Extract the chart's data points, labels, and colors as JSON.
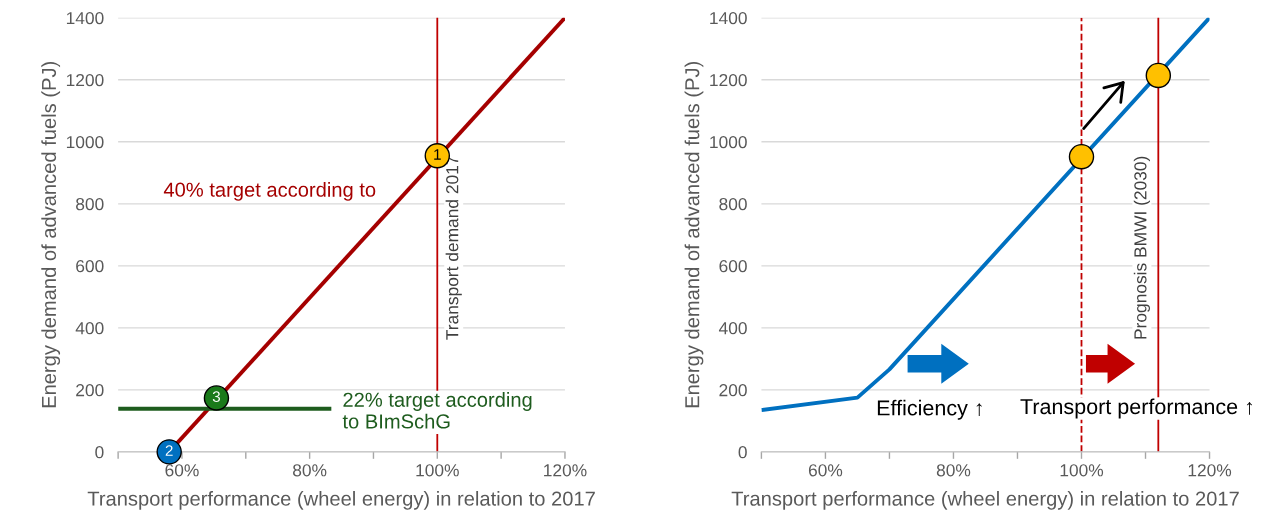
{
  "chart_data": [
    {
      "type": "line",
      "xlabel": "Transport performance (wheel energy) in relation to 2017",
      "ylabel": "Energy demand of advanced fuels (PJ)",
      "xlim": [
        50,
        120
      ],
      "xticks": [
        {
          "value": 50,
          "label": null
        },
        {
          "value": 60,
          "label": "60%"
        },
        {
          "value": 70,
          "label": null
        },
        {
          "value": 80,
          "label": "80%"
        },
        {
          "value": 90,
          "label": null
        },
        {
          "value": 100,
          "label": "100%"
        },
        {
          "value": 110,
          "label": null
        },
        {
          "value": 120,
          "label": "120%"
        }
      ],
      "ylim": [
        0,
        1400
      ],
      "yticks": [
        0,
        200,
        400,
        600,
        800,
        1000,
        1200,
        1400
      ],
      "grid": "y",
      "legend": false,
      "series": [
        {
          "type": "line",
          "name": "40% target according to",
          "color": "#a50000",
          "x": [
            58,
            120
          ],
          "values": [
            0,
            1400
          ],
          "marker": "none"
        },
        {
          "type": "line",
          "name": "22% target according\nto BImSchG",
          "color": "#1e5c1e",
          "x": [
            50,
            83.4
          ],
          "values": [
            139,
            139
          ],
          "marker": "none"
        },
        {
          "type": "scatter",
          "x": [
            100,
            58,
            65.4
          ],
          "values": [
            955,
            0,
            174
          ],
          "colors": [
            "#ffc000",
            "#0070c0",
            "#1a7a1a"
          ],
          "marker": "circle"
        }
      ],
      "ref_lines": [
        {
          "axis": "x",
          "value": 100,
          "label": "Transport demand 2017",
          "color": "#c00000",
          "line_style": "solid"
        }
      ],
      "annotations": [
        {
          "text": "1",
          "x": 100,
          "y": 955
        },
        {
          "text": "2",
          "x": 58,
          "y": 0
        },
        {
          "text": "3",
          "x": 65.4,
          "y": 174
        }
      ]
    },
    {
      "type": "line",
      "xlabel": "Transport performance (wheel energy) in relation to 2017",
      "ylabel": "Energy demand of advanced fuels (PJ)",
      "xlim": [
        50,
        120
      ],
      "xticks": [
        {
          "value": 50,
          "label": null
        },
        {
          "value": 60,
          "label": "60%"
        },
        {
          "value": 70,
          "label": null
        },
        {
          "value": 80,
          "label": "80%"
        },
        {
          "value": 90,
          "label": null
        },
        {
          "value": 100,
          "label": "100%"
        },
        {
          "value": 110,
          "label": null
        },
        {
          "value": 120,
          "label": "120%"
        }
      ],
      "ylim": [
        0,
        1400
      ],
      "yticks": [
        0,
        200,
        400,
        600,
        800,
        1000,
        1200,
        1400
      ],
      "grid": "y",
      "legend": false,
      "series": [
        {
          "type": "line",
          "color": "#0070c0",
          "x": [
            50,
            65,
            70,
            120
          ],
          "values": [
            135,
            175,
            266,
            1400
          ],
          "marker": "none"
        },
        {
          "type": "scatter",
          "x": [
            100,
            112
          ],
          "values": [
            952,
            1214
          ],
          "colors": [
            "#ffc000",
            "#ffc000"
          ],
          "marker": "circle"
        }
      ],
      "ref_lines": [
        {
          "axis": "x",
          "value": 100,
          "color": "#c00000",
          "line_style": "dashed"
        },
        {
          "axis": "x",
          "value": 112,
          "label": "Prognosis BMWI (2030)",
          "color": "#c00000",
          "line_style": "solid"
        }
      ],
      "annotations": [
        "Efficiency ↑",
        "Transport performance ↑"
      ]
    }
  ]
}
